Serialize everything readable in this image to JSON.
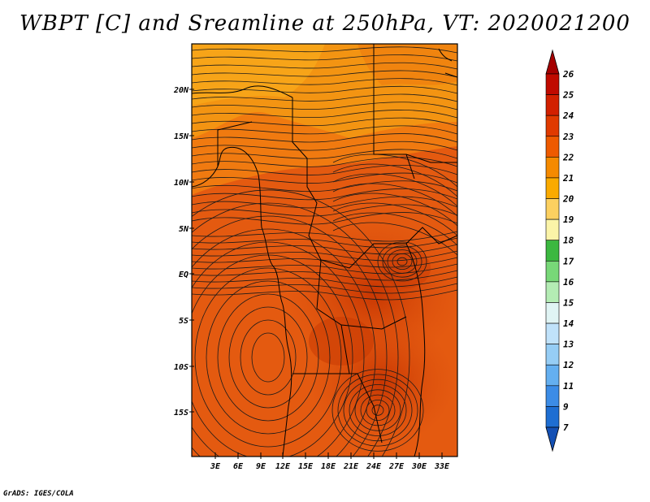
{
  "title": "WBPT [C] and Sreamline at 250hPa, VT: 2020021200",
  "footer": "GrADS: IGES/COLA",
  "map": {
    "lat_labels": [
      "20N",
      "15N",
      "10N",
      "5N",
      "EQ",
      "5S",
      "10S",
      "15S"
    ],
    "lon_labels": [
      "3E",
      "6E",
      "9E",
      "12E",
      "15E",
      "18E",
      "21E",
      "24E",
      "27E",
      "30E",
      "33E"
    ]
  },
  "colorbar": {
    "levels": [
      "26",
      "25",
      "24",
      "23",
      "22",
      "21",
      "20",
      "19",
      "18",
      "17",
      "16",
      "15",
      "14",
      "13",
      "12",
      "11",
      "9",
      "7"
    ],
    "colors": [
      "#a50000",
      "#c00a00",
      "#d22000",
      "#e03a00",
      "#ee5a00",
      "#f58a00",
      "#faaa00",
      "#fcd060",
      "#fbf4a8",
      "#3cb840",
      "#78d878",
      "#b4ecb4",
      "#e0f4f4",
      "#c0e2fa",
      "#96cdf5",
      "#64aff0",
      "#3c8ce6",
      "#1e6ed2",
      "#1450b4"
    ]
  },
  "colors": {
    "field_main": "#e45a10",
    "field_north": "#f5a015",
    "field_core": "#cc3d08"
  }
}
